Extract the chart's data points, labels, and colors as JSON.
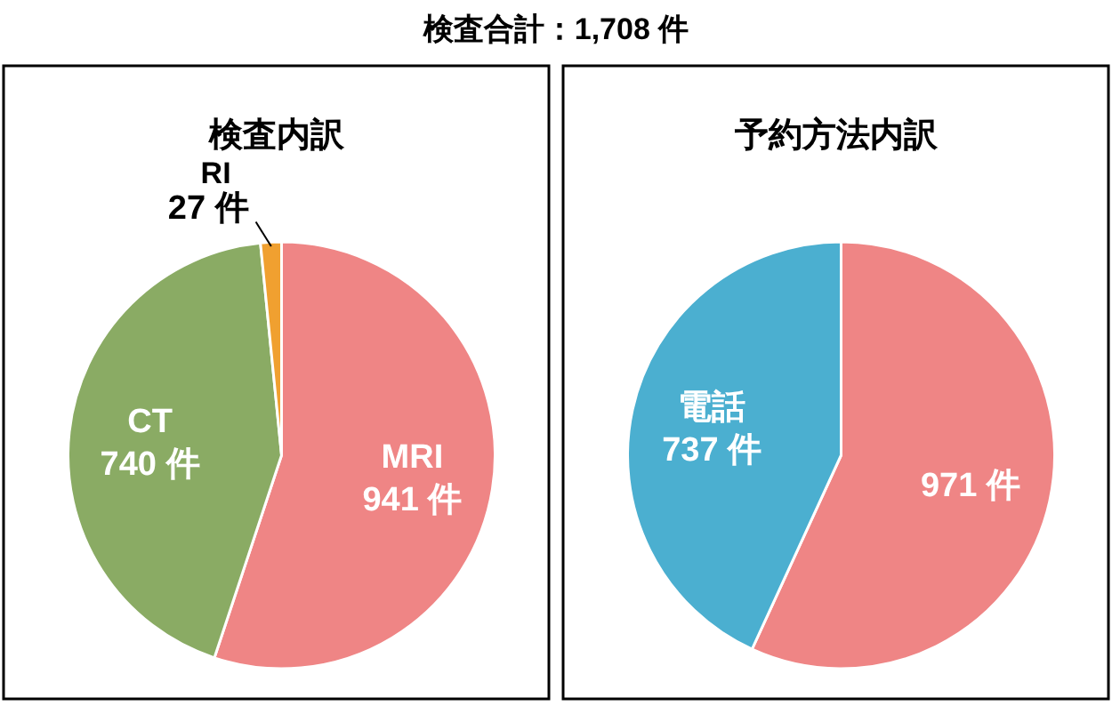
{
  "chart_data": [
    {
      "type": "pie",
      "title": "検査合計：1,708 件",
      "subtitle": "検査内訳",
      "categories": [
        "MRI",
        "CT",
        "RI"
      ],
      "values": [
        941,
        740,
        27
      ],
      "colors": [
        "#ef8585",
        "#8aab64",
        "#f0a030"
      ],
      "value_labels": [
        "941 件",
        "740 件",
        "27 件"
      ]
    },
    {
      "type": "pie",
      "title": "予約方法内訳",
      "categories": [
        null,
        "電話"
      ],
      "values": [
        971,
        737
      ],
      "colors": [
        "#ef8585",
        "#4bafd0"
      ],
      "value_labels": [
        "971 件",
        "737 件"
      ]
    }
  ]
}
